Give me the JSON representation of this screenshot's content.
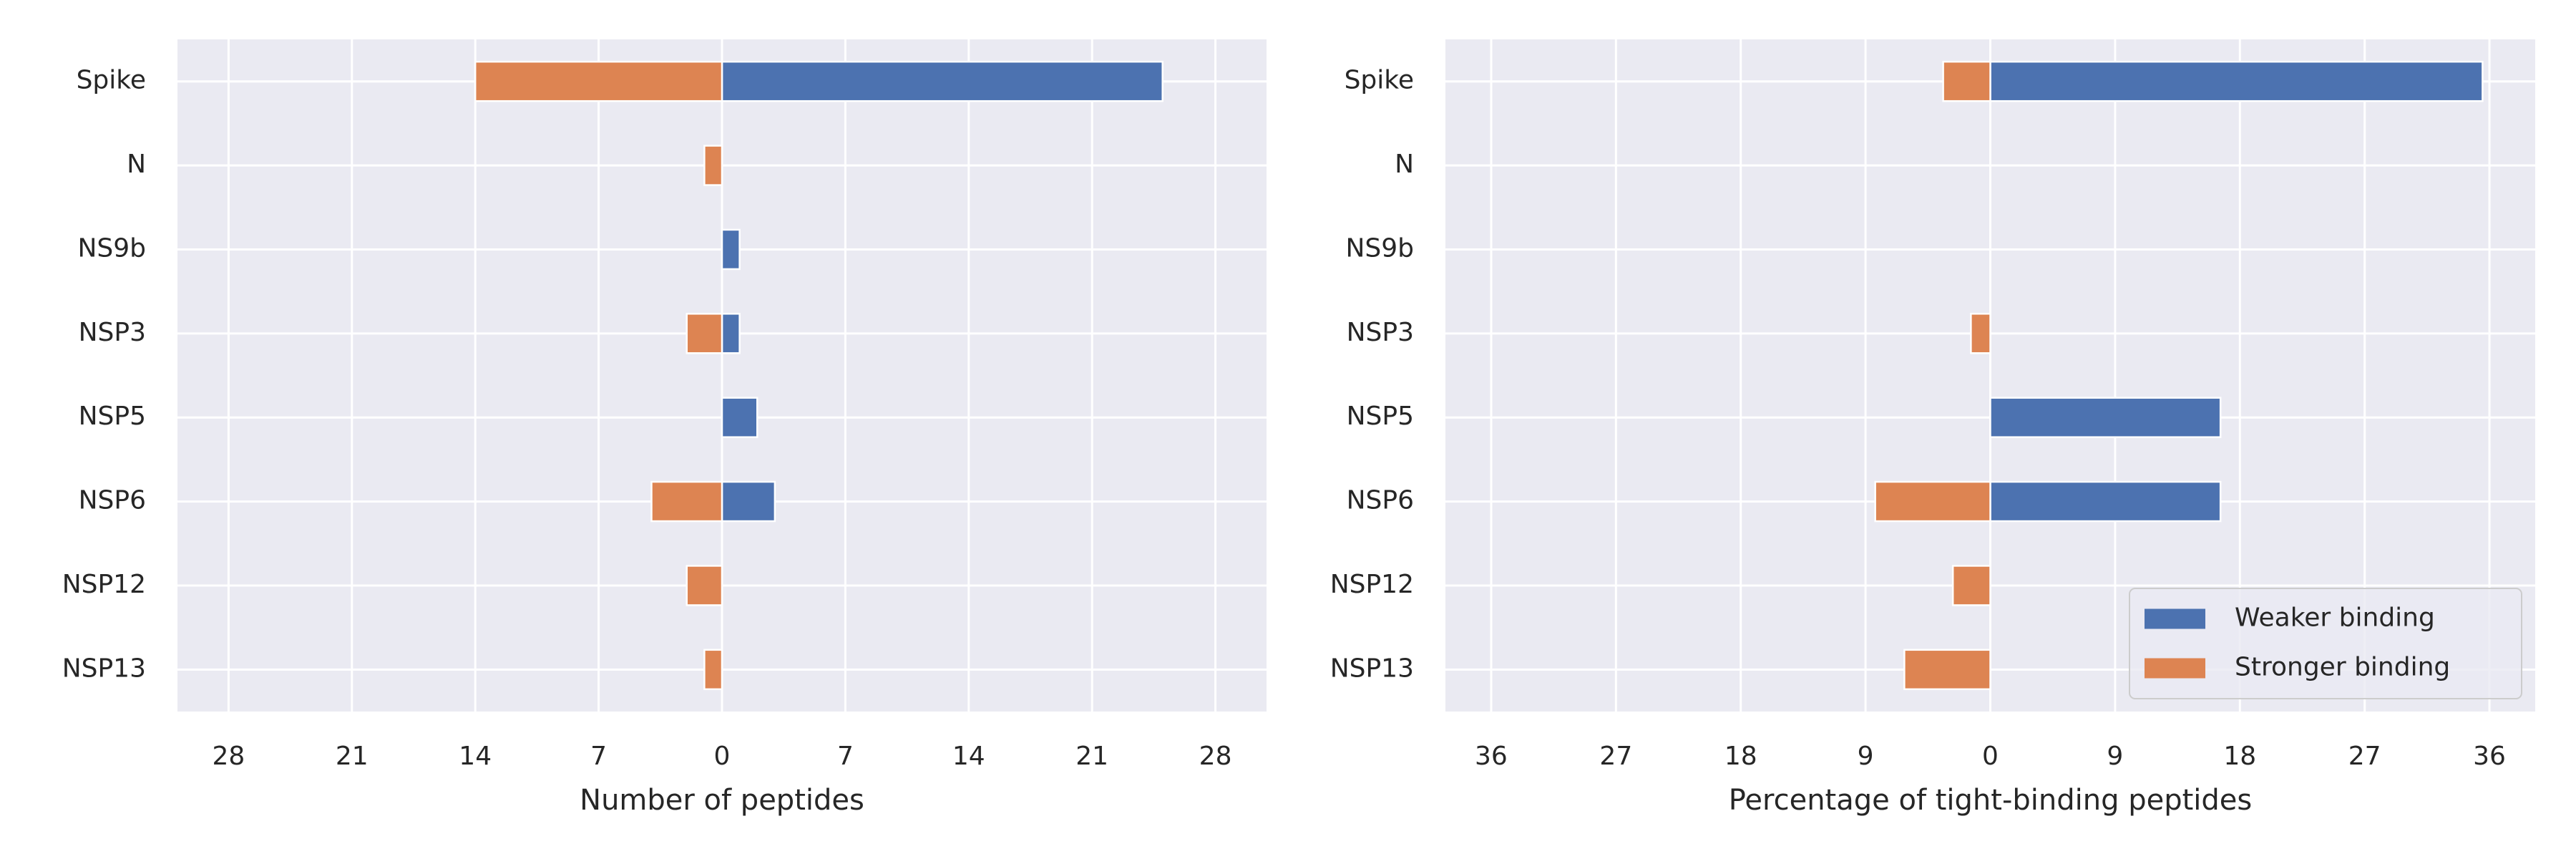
{
  "chart_data": [
    {
      "type": "bar",
      "orientation": "horizontal",
      "xlabel": "Number of peptides",
      "categories": [
        "Spike",
        "N",
        "NS9b",
        "NSP3",
        "NSP5",
        "NSP6",
        "NSP12",
        "NSP13"
      ],
      "series": [
        {
          "color": "#4c72b0",
          "values": [
            25,
            0,
            1,
            1,
            2,
            3,
            0,
            0
          ]
        },
        {
          "color": "#dd8452",
          "values": [
            -14,
            -1,
            0,
            -2,
            0,
            -4,
            -2,
            -1
          ]
        }
      ],
      "xlim": [
        -30.9,
        30.9
      ],
      "xticks": [
        {
          "value": -28,
          "label": "28"
        },
        {
          "value": -21,
          "label": "21"
        },
        {
          "value": -14,
          "label": "14"
        },
        {
          "value": -7,
          "label": "7"
        },
        0,
        7,
        14,
        21,
        28
      ],
      "grid": true
    },
    {
      "type": "bar",
      "orientation": "horizontal",
      "xlabel": "Percentage of tight-binding peptides",
      "categories": [
        "Spike",
        "N",
        "NS9b",
        "NSP3",
        "NSP5",
        "NSP6",
        "NSP12",
        "NSP13"
      ],
      "series": [
        {
          "name": "Weaker binding",
          "color": "#4c72b0",
          "values": [
            35.5,
            0,
            0,
            0,
            16.6,
            16.6,
            0,
            0
          ]
        },
        {
          "name": "Stronger binding",
          "color": "#dd8452",
          "values": [
            -3.4,
            0,
            0,
            -1.4,
            0,
            -8.3,
            -2.7,
            -6.2
          ]
        }
      ],
      "xlim": [
        -39.3,
        39.3
      ],
      "xticks": [
        {
          "value": -36,
          "label": "36"
        },
        {
          "value": -27,
          "label": "27"
        },
        {
          "value": -18,
          "label": "18"
        },
        {
          "value": -9,
          "label": "9"
        },
        0,
        9,
        18,
        27,
        36
      ],
      "grid": true,
      "legend": "lower right"
    }
  ]
}
